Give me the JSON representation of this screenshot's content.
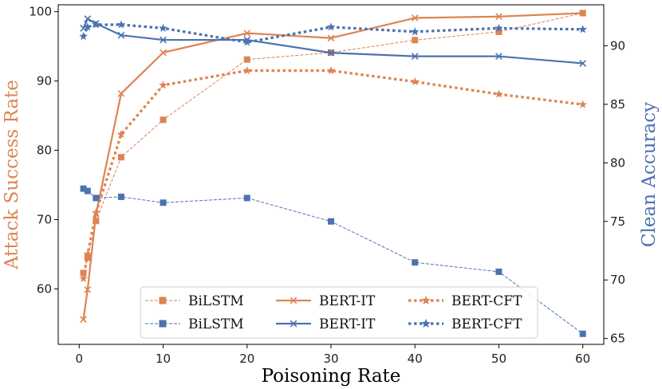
{
  "chart_data": {
    "type": "line",
    "xlabel": "Poisoning Rate",
    "ylabel_left": "Attack Success Rate",
    "ylabel_right": "Clean Accuracy",
    "xlim": [
      -2.5,
      62.5
    ],
    "ylim_left": [
      52,
      101
    ],
    "ylim_right": [
      64.5,
      93.5
    ],
    "x_ticks": [
      0,
      10,
      20,
      30,
      40,
      50,
      60
    ],
    "y_left_ticks": [
      60,
      70,
      80,
      90,
      100
    ],
    "y_right_ticks": [
      65,
      70,
      75,
      80,
      85,
      90
    ],
    "colors": {
      "orange": "#dd8452",
      "blue": "#4c72b0"
    },
    "legend": {
      "row1": [
        "BiLSTM",
        "BERT-IT",
        "BERT-CFT"
      ],
      "row2": [
        "BiLSTM",
        "BERT-IT",
        "BERT-CFT"
      ]
    },
    "series": [
      {
        "name": "BiLSTM",
        "metric": "Attack Success Rate",
        "axis": "left",
        "color": "orange",
        "marker": "square",
        "style": "thin-dashed",
        "x": [
          0.5,
          1,
          2,
          5,
          10,
          20,
          30,
          40,
          50,
          60
        ],
        "values": [
          62.3,
          64.5,
          69.8,
          79.0,
          84.4,
          93.1,
          94.1,
          95.9,
          97.1,
          99.8
        ]
      },
      {
        "name": "BERT-IT",
        "metric": "Attack Success Rate",
        "axis": "left",
        "color": "orange",
        "marker": "x",
        "style": "solid",
        "x": [
          0.5,
          1,
          2,
          5,
          10,
          20,
          30,
          40,
          50,
          60
        ],
        "values": [
          55.6,
          59.9,
          70.8,
          88.2,
          94.1,
          96.9,
          96.2,
          99.1,
          99.3,
          99.8
        ]
      },
      {
        "name": "BERT-CFT",
        "metric": "Attack Success Rate",
        "axis": "left",
        "color": "orange",
        "marker": "star",
        "style": "dotted",
        "x": [
          0.5,
          1,
          2,
          5,
          10,
          20,
          30,
          40,
          50,
          60
        ],
        "values": [
          61.5,
          65.0,
          71.0,
          82.3,
          89.4,
          91.5,
          91.5,
          89.9,
          88.1,
          86.6
        ]
      },
      {
        "name": "BiLSTM",
        "metric": "Clean Accuracy",
        "axis": "right",
        "color": "blue",
        "marker": "square",
        "style": "thin-dashed",
        "x": [
          0.5,
          1,
          2,
          5,
          10,
          20,
          30,
          40,
          50,
          60
        ],
        "values": [
          77.8,
          77.6,
          77.0,
          77.1,
          76.6,
          77.0,
          75.0,
          71.5,
          70.7,
          65.4
        ]
      },
      {
        "name": "BERT-IT",
        "metric": "Clean Accuracy",
        "axis": "right",
        "color": "blue",
        "marker": "x",
        "style": "solid",
        "x": [
          0.5,
          1,
          2,
          5,
          10,
          20,
          30,
          40,
          50,
          60
        ],
        "values": [
          91.5,
          92.3,
          91.9,
          90.9,
          90.5,
          90.5,
          89.4,
          89.1,
          89.1,
          88.5
        ]
      },
      {
        "name": "BERT-CFT",
        "metric": "Clean Accuracy",
        "axis": "right",
        "color": "blue",
        "marker": "star",
        "style": "dotted",
        "x": [
          0.5,
          1,
          2,
          5,
          10,
          20,
          30,
          40,
          50,
          60
        ],
        "values": [
          90.8,
          91.6,
          91.8,
          91.8,
          91.5,
          90.3,
          91.6,
          91.2,
          91.5,
          91.4
        ]
      }
    ]
  }
}
